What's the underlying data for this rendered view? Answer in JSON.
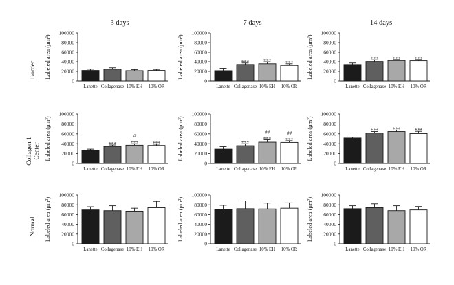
{
  "figure": {
    "col_titles": [
      "3 days",
      "7 days",
      "14 days"
    ],
    "row_labels": [
      "Border",
      "Collagen 1\nCenter",
      "Normal"
    ],
    "bar_colors": [
      "#1b1b1b",
      "#5f5f5f",
      "#a8a8a8",
      "#ffffff"
    ]
  },
  "chart_data": [
    {
      "type": "bar",
      "row": "Border",
      "col": "3 days",
      "xlabel": "",
      "ylabel": "Labeled area (μm²)",
      "ylim": [
        0,
        100000
      ],
      "yticks": [
        0,
        20000,
        40000,
        60000,
        80000,
        100000
      ],
      "categories": [
        "Lanette",
        "Collagenase",
        "10% EH",
        "10% OR"
      ],
      "values": [
        22000,
        24500,
        21500,
        22000
      ],
      "errors": [
        2500,
        3000,
        2200,
        2000
      ],
      "annotations": [
        "",
        "",
        "",
        ""
      ]
    },
    {
      "type": "bar",
      "row": "Border",
      "col": "7 days",
      "xlabel": "",
      "ylabel": "Labeled area (μm²)",
      "ylim": [
        0,
        100000
      ],
      "yticks": [
        0,
        20000,
        40000,
        60000,
        80000,
        100000
      ],
      "categories": [
        "Lanette",
        "Collagenase",
        "10% EH",
        "10% OR"
      ],
      "values": [
        21500,
        34500,
        36000,
        32500
      ],
      "errors": [
        5000,
        3000,
        4000,
        3500
      ],
      "annotations": [
        "",
        "***",
        "***",
        "***"
      ]
    },
    {
      "type": "bar",
      "row": "Border",
      "col": "14 days",
      "xlabel": "",
      "ylabel": "Labeled area (μm²)",
      "ylim": [
        0,
        100000
      ],
      "yticks": [
        0,
        20000,
        40000,
        60000,
        80000,
        100000
      ],
      "categories": [
        "Lanette",
        "Collagenase",
        "10% EH",
        "10% OR"
      ],
      "values": [
        34500,
        40500,
        42500,
        42000
      ],
      "errors": [
        3000,
        3500,
        2000,
        2500
      ],
      "annotations": [
        "",
        "***",
        "***",
        "***"
      ]
    },
    {
      "type": "bar",
      "row": "Collagen 1 Center",
      "col": "3 days",
      "xlabel": "",
      "ylabel": "Labeled area (μm²)",
      "ylim": [
        0,
        100000
      ],
      "yticks": [
        0,
        20000,
        40000,
        60000,
        80000,
        100000
      ],
      "categories": [
        "Lanette",
        "Collagenase",
        "10% EH",
        "10% OR"
      ],
      "values": [
        26500,
        34500,
        37000,
        36500
      ],
      "errors": [
        2500,
        3000,
        3000,
        2500
      ],
      "annotations": [
        "",
        "***",
        "#\n***",
        "***"
      ]
    },
    {
      "type": "bar",
      "row": "Collagen 1 Center",
      "col": "7 days",
      "xlabel": "",
      "ylabel": "Labeled area (μm²)",
      "ylim": [
        0,
        100000
      ],
      "yticks": [
        0,
        20000,
        40000,
        60000,
        80000,
        100000
      ],
      "categories": [
        "Lanette",
        "Collagenase",
        "10% EH",
        "10% OR"
      ],
      "values": [
        29000,
        36000,
        43000,
        42500
      ],
      "errors": [
        5000,
        4000,
        5000,
        3500
      ],
      "annotations": [
        "",
        "***",
        "##\n***",
        "##\n***"
      ]
    },
    {
      "type": "bar",
      "row": "Collagen 1 Center",
      "col": "14 days",
      "xlabel": "",
      "ylabel": "Labeled area (μm²)",
      "ylim": [
        0,
        100000
      ],
      "yticks": [
        0,
        20000,
        40000,
        60000,
        80000,
        100000
      ],
      "categories": [
        "Lanette",
        "Collagenase",
        "10% EH",
        "10% OR"
      ],
      "values": [
        51500,
        61500,
        64500,
        60500
      ],
      "errors": [
        2000,
        3000,
        3000,
        4500
      ],
      "annotations": [
        "",
        "***",
        "***",
        "***"
      ]
    },
    {
      "type": "bar",
      "row": "Normal",
      "col": "3 days",
      "xlabel": "",
      "ylabel": "Labeled area (μm²)",
      "ylim": [
        0,
        100000
      ],
      "yticks": [
        0,
        20000,
        40000,
        60000,
        80000,
        100000
      ],
      "categories": [
        "Lanette",
        "Collagenase",
        "10% EH",
        "10% OR"
      ],
      "values": [
        69500,
        68000,
        67000,
        74000
      ],
      "errors": [
        6500,
        10000,
        6000,
        13000
      ],
      "annotations": [
        "",
        "",
        "",
        ""
      ]
    },
    {
      "type": "bar",
      "row": "Normal",
      "col": "7 days",
      "xlabel": "",
      "ylabel": "Labeled area (μm²)",
      "ylim": [
        0,
        100000
      ],
      "yticks": [
        0,
        20000,
        40000,
        60000,
        80000,
        100000
      ],
      "categories": [
        "Lanette",
        "Collagenase",
        "10% EH",
        "10% OR"
      ],
      "values": [
        70000,
        72000,
        71500,
        73000
      ],
      "errors": [
        9000,
        16000,
        12000,
        11000
      ],
      "annotations": [
        "",
        "",
        "",
        ""
      ]
    },
    {
      "type": "bar",
      "row": "Normal",
      "col": "14 days",
      "xlabel": "",
      "ylabel": "Labeled area (μm²)",
      "ylim": [
        0,
        100000
      ],
      "yticks": [
        0,
        20000,
        40000,
        60000,
        80000,
        100000
      ],
      "categories": [
        "Lanette",
        "Collagenase",
        "10% EH",
        "10% OR"
      ],
      "values": [
        72000,
        74000,
        68000,
        69500
      ],
      "errors": [
        6000,
        8000,
        10000,
        7000
      ],
      "annotations": [
        "",
        "",
        "",
        ""
      ]
    }
  ]
}
